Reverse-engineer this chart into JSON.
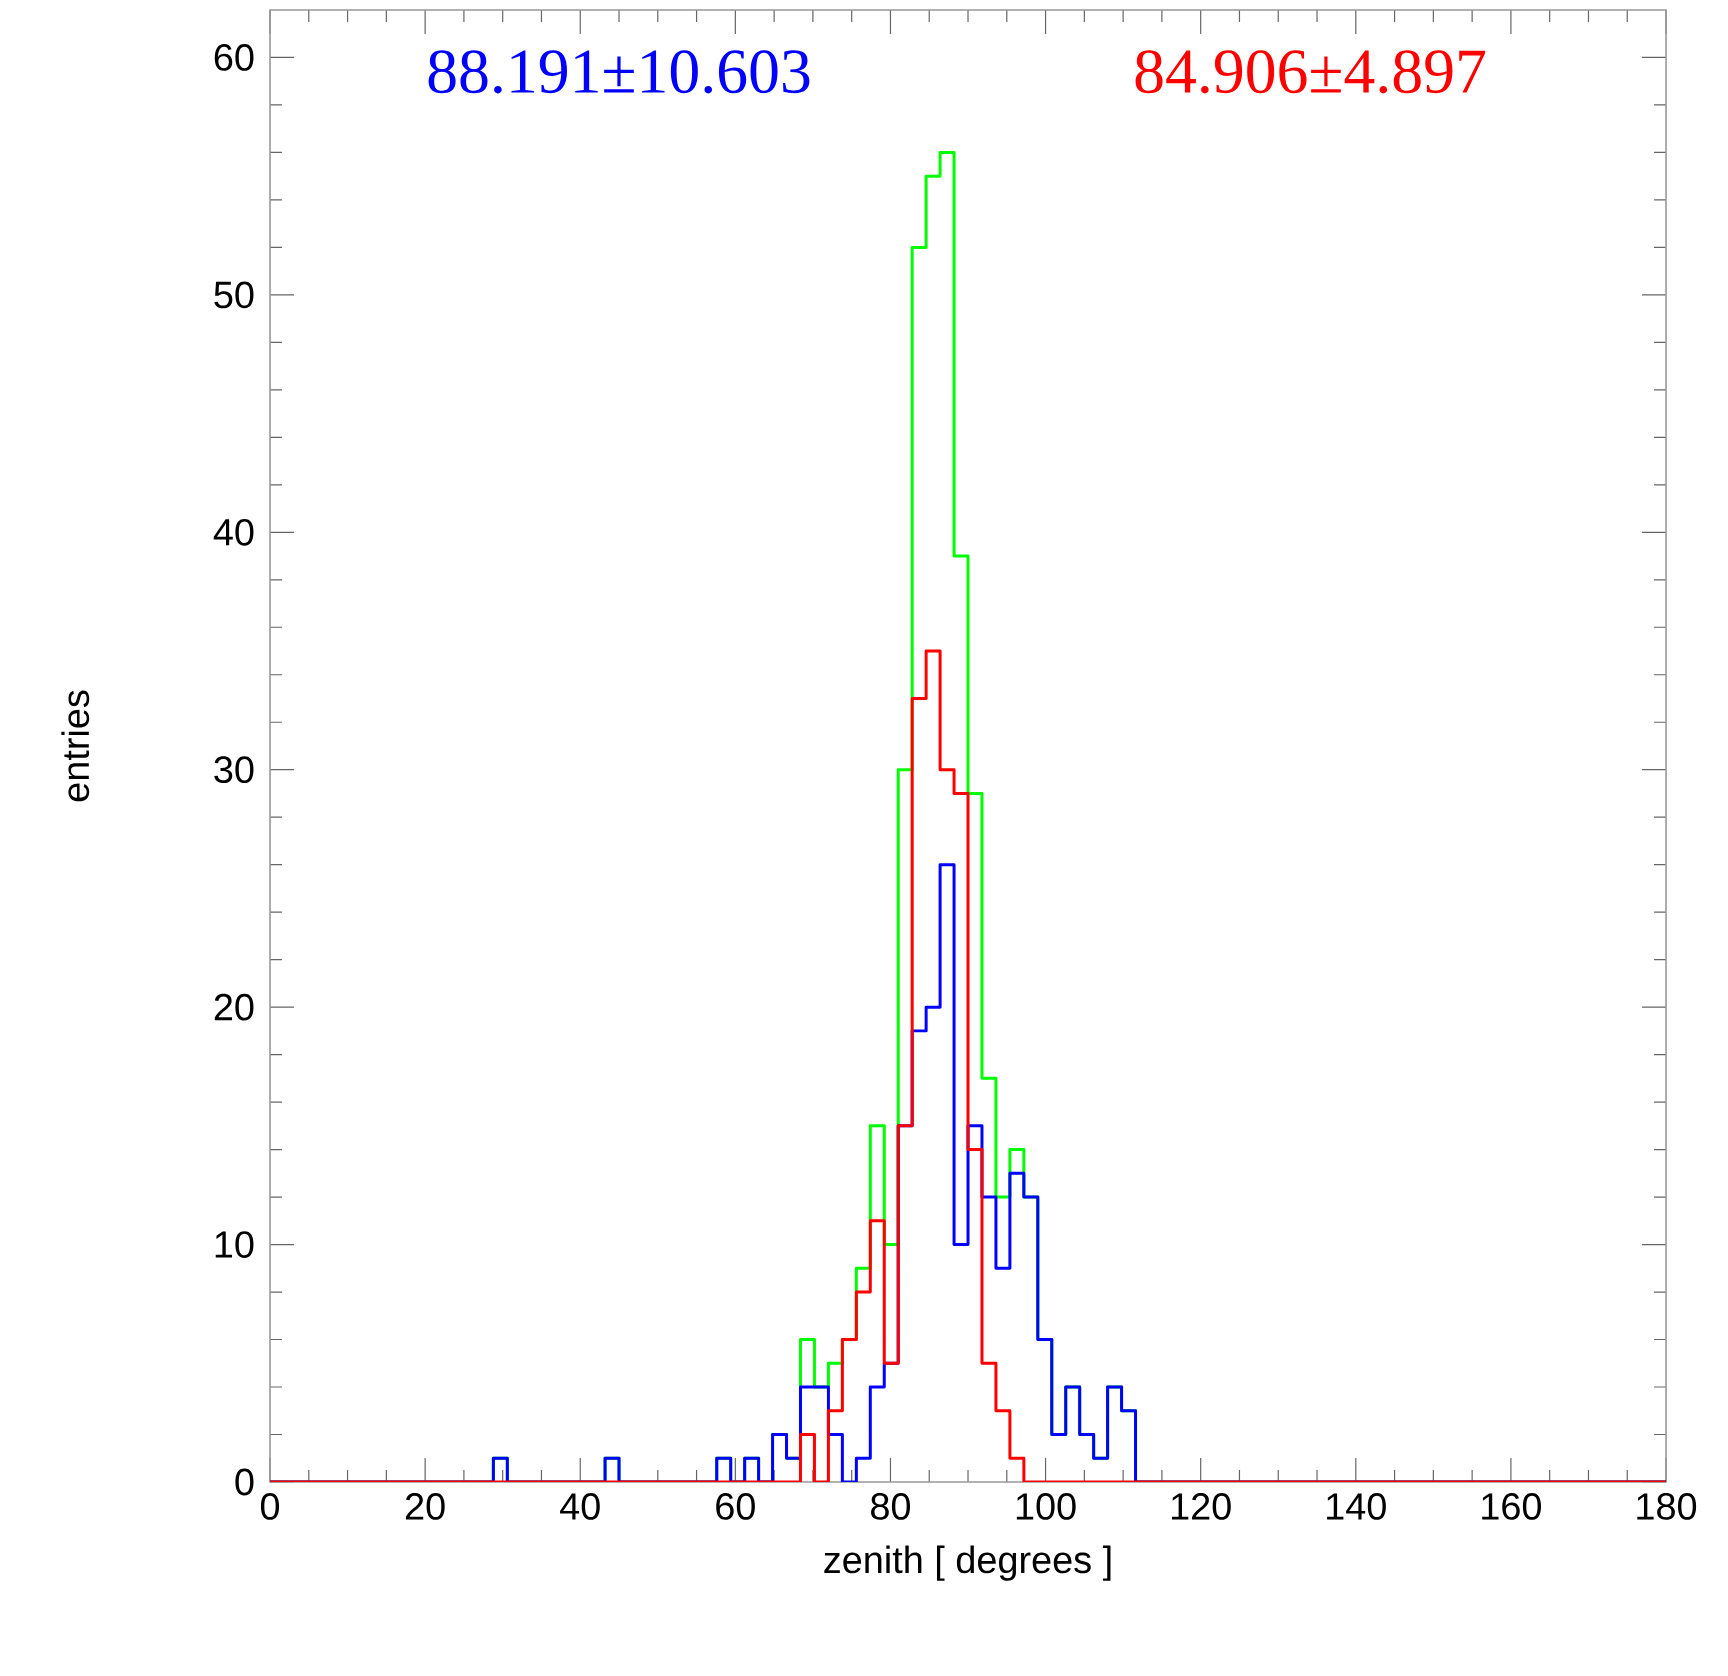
{
  "chart_data": {
    "type": "histogram",
    "xlabel": "zenith [ degrees ]",
    "ylabel": "entries",
    "annotations": [
      "88.191±10.603",
      "84.906±4.897"
    ],
    "bins": [
      0,
      1.8,
      3.6,
      5.4,
      7.2,
      9,
      10.8,
      12.6,
      14.4,
      16.2,
      18,
      19.8,
      21.6,
      23.4,
      25.2,
      27,
      28.8,
      30.6,
      32.4,
      34.2,
      36,
      37.8,
      39.6,
      41.4,
      43.2,
      45,
      46.8,
      48.6,
      50.4,
      52.2,
      54,
      55.8,
      57.6,
      59.4,
      61.2,
      63,
      64.8,
      66.6,
      68.4,
      70.2,
      72,
      73.8,
      75.6,
      77.4,
      79.2,
      81,
      82.8,
      84.6,
      86.4,
      88.2,
      90,
      91.8,
      93.6,
      95.4,
      97.2,
      99,
      100.8,
      102.6,
      104.4,
      106.2,
      108,
      109.8,
      111.6,
      113.4,
      115.2,
      117,
      118.8,
      120.6,
      122.4,
      124.2,
      126,
      127.8,
      129.6,
      131.4,
      133.2,
      135,
      136.8,
      138.6,
      140.4,
      142.2,
      144,
      145.8,
      147.6,
      149.4,
      151.2,
      153,
      154.8,
      156.6,
      158.4,
      160.2,
      162,
      163.8,
      165.6,
      167.4,
      169.2,
      171,
      172.8,
      174.6,
      176.4,
      178.2,
      180
    ],
    "series": [
      {
        "color": "#00ff00",
        "values": [
          0,
          0,
          0,
          0,
          0,
          0,
          0,
          0,
          0,
          0,
          0,
          0,
          0,
          0,
          0,
          0,
          1,
          0,
          0,
          0,
          0,
          0,
          0,
          0,
          1,
          0,
          0,
          0,
          0,
          0,
          0,
          0,
          1,
          0,
          1,
          0,
          2,
          1,
          6,
          4,
          5,
          6,
          9,
          15,
          10,
          30,
          52,
          55,
          56,
          39,
          29,
          17,
          12,
          14,
          12,
          6,
          2,
          4,
          2,
          1,
          4,
          3,
          0,
          0,
          0,
          0,
          0,
          0,
          0,
          0,
          0,
          0,
          0,
          0,
          0,
          0,
          0,
          0,
          0,
          0,
          0,
          0,
          0,
          0,
          0,
          0,
          0,
          0,
          0,
          0,
          0,
          0,
          0,
          0,
          0,
          0,
          0,
          0,
          0,
          0
        ]
      },
      {
        "color": "#0000ff",
        "values": [
          0,
          0,
          0,
          0,
          0,
          0,
          0,
          0,
          0,
          0,
          0,
          0,
          0,
          0,
          0,
          0,
          1,
          0,
          0,
          0,
          0,
          0,
          0,
          0,
          1,
          0,
          0,
          0,
          0,
          0,
          0,
          0,
          1,
          0,
          1,
          0,
          2,
          1,
          4,
          4,
          2,
          0,
          1,
          4,
          5,
          15,
          19,
          20,
          26,
          10,
          15,
          12,
          9,
          13,
          12,
          6,
          2,
          4,
          2,
          1,
          4,
          3,
          0,
          0,
          0,
          0,
          0,
          0,
          0,
          0,
          0,
          0,
          0,
          0,
          0,
          0,
          0,
          0,
          0,
          0,
          0,
          0,
          0,
          0,
          0,
          0,
          0,
          0,
          0,
          0,
          0,
          0,
          0,
          0,
          0,
          0,
          0,
          0,
          0,
          0
        ]
      },
      {
        "color": "#ff0000",
        "values": [
          0,
          0,
          0,
          0,
          0,
          0,
          0,
          0,
          0,
          0,
          0,
          0,
          0,
          0,
          0,
          0,
          0,
          0,
          0,
          0,
          0,
          0,
          0,
          0,
          0,
          0,
          0,
          0,
          0,
          0,
          0,
          0,
          0,
          0,
          0,
          0,
          0,
          0,
          2,
          0,
          3,
          6,
          8,
          11,
          5,
          15,
          33,
          35,
          30,
          29,
          14,
          5,
          3,
          1,
          0,
          0,
          0,
          0,
          0,
          0,
          0,
          0,
          0,
          0,
          0,
          0,
          0,
          0,
          0,
          0,
          0,
          0,
          0,
          0,
          0,
          0,
          0,
          0,
          0,
          0,
          0,
          0,
          0,
          0,
          0,
          0,
          0,
          0,
          0,
          0,
          0,
          0,
          0,
          0,
          0,
          0,
          0,
          0,
          0,
          0
        ]
      }
    ],
    "xlim": [
      0,
      180
    ],
    "xticks": [
      0,
      20,
      40,
      60,
      80,
      100,
      120,
      140,
      160,
      180
    ],
    "ylim": [
      0,
      62
    ],
    "yticks": [
      0,
      10,
      20,
      30,
      40,
      50,
      60
    ],
    "grid": false
  }
}
